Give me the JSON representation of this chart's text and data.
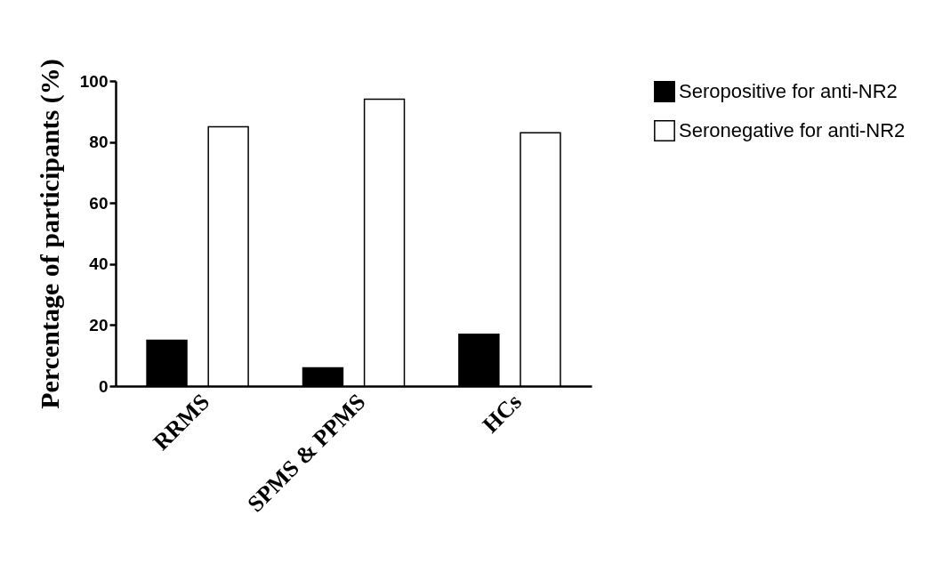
{
  "chart_data": {
    "type": "bar",
    "ylabel": "Percentage of participants (%)",
    "categories": [
      "RRMS",
      "SPMS & PPMS",
      "HCs"
    ],
    "series": [
      {
        "name": "Seropositive for anti-NR2",
        "color": "#000000",
        "values": [
          15,
          6,
          17
        ]
      },
      {
        "name": "Seronegative for anti-NR2",
        "color": "#ffffff",
        "values": [
          85,
          94,
          83
        ]
      }
    ],
    "ylim": [
      0,
      100
    ],
    "yticks": [
      0,
      20,
      40,
      60,
      80,
      100
    ],
    "grid": false,
    "legend": "right"
  }
}
